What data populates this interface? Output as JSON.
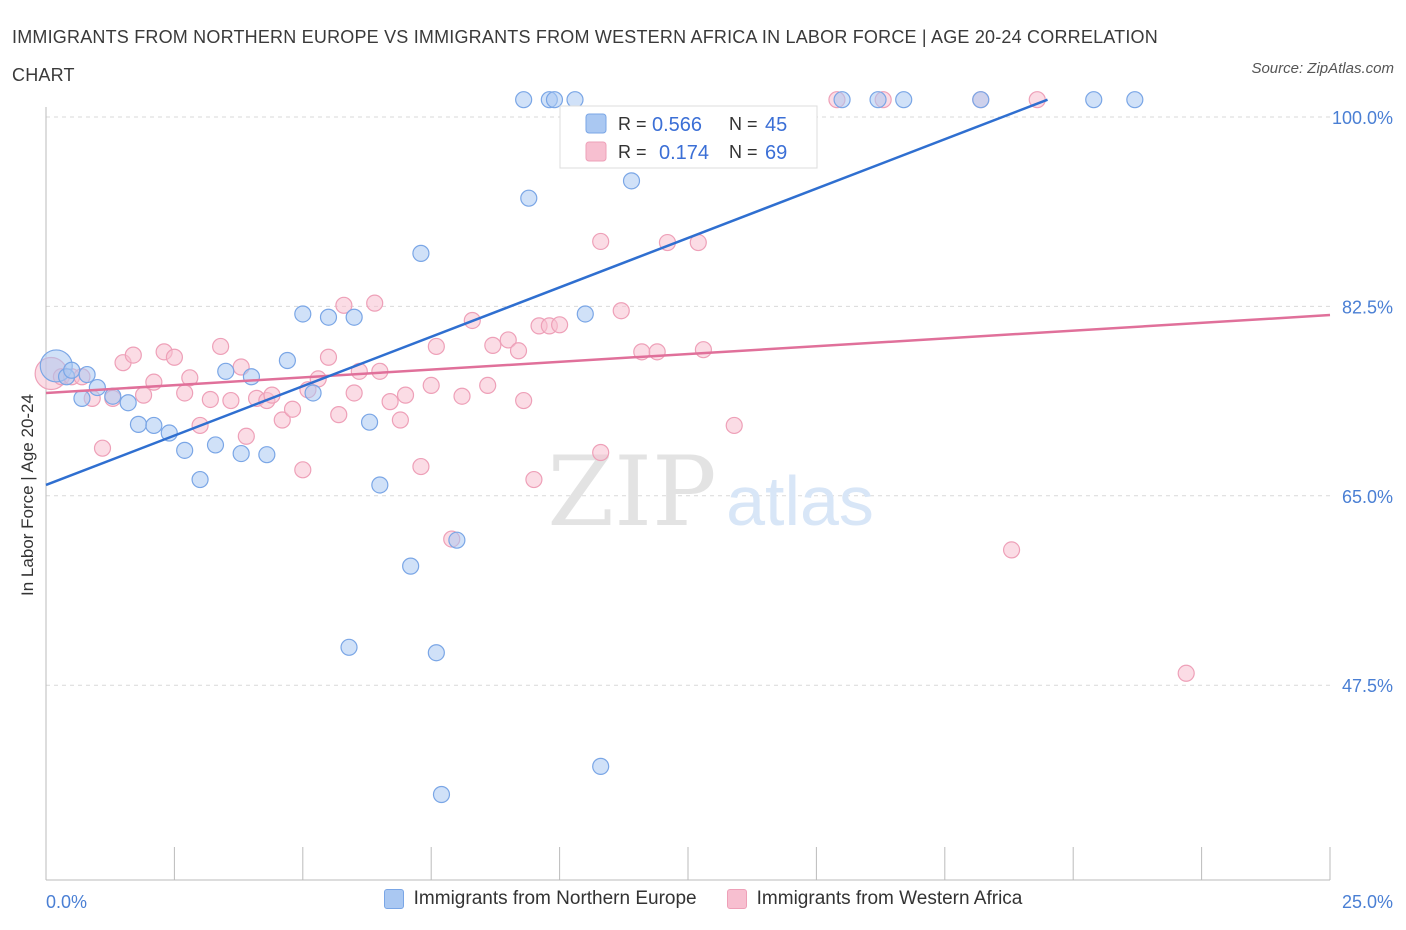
{
  "header": {
    "title": "IMMIGRANTS FROM NORTHERN EUROPE VS IMMIGRANTS FROM WESTERN AFRICA IN LABOR FORCE | AGE 20-24 CORRELATION CHART",
    "source": "Source: ZipAtlas.com"
  },
  "watermark": {
    "zip": "ZIP",
    "atlas": "atlas"
  },
  "stats": {
    "r_label": "R =",
    "n_label": "N =",
    "blue": {
      "r": "0.566",
      "n": "45"
    },
    "pink": {
      "r": "0.174",
      "n": "69"
    }
  },
  "legend": {
    "blue": "Immigrants from Northern Europe",
    "pink": "Immigrants from Western Africa"
  },
  "colors": {
    "blue_fill": "#aac8f2",
    "blue_stroke": "#7aa6e6",
    "blue_line": "#2f6fd0",
    "pink_fill": "#f7bfd0",
    "pink_stroke": "#eea0b8",
    "pink_line": "#e0709a",
    "grid": "#d9d9d9",
    "tick_text": "#4a7fd4"
  },
  "chart_data": {
    "type": "scatter",
    "title": "IMMIGRANTS FROM NORTHERN EUROPE VS IMMIGRANTS FROM WESTERN AFRICA IN LABOR FORCE | AGE 20-24 CORRELATION CHART",
    "xlabel": "",
    "ylabel": "In Labor Force | Age 20-24",
    "xlim": [
      0,
      25
    ],
    "ylim": [
      29.5,
      100
    ],
    "x_tick_labels": [
      "0.0%",
      "25.0%"
    ],
    "y_ticks": [
      47.5,
      65.0,
      82.5,
      100.0
    ],
    "y_tick_labels": [
      "47.5%",
      "65.0%",
      "82.5%",
      "100.0%"
    ],
    "grid": true,
    "legend_position": "bottom",
    "series": [
      {
        "name": "Immigrants from Northern Europe",
        "color": "#7aa6e6",
        "r": 0.566,
        "n": 45,
        "trend": {
          "x": [
            0,
            19.5
          ],
          "y": [
            66.0,
            101.6
          ]
        },
        "points": [
          [
            0.2,
            77.0
          ],
          [
            0.4,
            76.0
          ],
          [
            0.5,
            76.6
          ],
          [
            0.7,
            74.0
          ],
          [
            1.0,
            75.0
          ],
          [
            1.3,
            74.2
          ],
          [
            1.6,
            73.6
          ],
          [
            1.8,
            71.6
          ],
          [
            2.1,
            71.5
          ],
          [
            2.4,
            70.8
          ],
          [
            2.7,
            69.2
          ],
          [
            3.0,
            66.5
          ],
          [
            3.3,
            69.7
          ],
          [
            3.5,
            76.5
          ],
          [
            3.8,
            68.9
          ],
          [
            4.0,
            76.0
          ],
          [
            4.3,
            68.8
          ],
          [
            4.7,
            77.5
          ],
          [
            5.0,
            81.8
          ],
          [
            5.2,
            74.5
          ],
          [
            5.5,
            81.5
          ],
          [
            6.0,
            81.5
          ],
          [
            6.3,
            71.8
          ],
          [
            6.5,
            66.0
          ],
          [
            7.1,
            58.5
          ],
          [
            7.3,
            87.4
          ],
          [
            8.0,
            60.9
          ],
          [
            5.9,
            51.0
          ],
          [
            7.6,
            50.5
          ],
          [
            7.7,
            37.4
          ],
          [
            9.4,
            92.5
          ],
          [
            9.3,
            101.6
          ],
          [
            9.8,
            101.6
          ],
          [
            10.3,
            101.6
          ],
          [
            10.8,
            40.0
          ],
          [
            10.5,
            81.8
          ],
          [
            11.4,
            94.1
          ],
          [
            15.5,
            101.6
          ],
          [
            16.2,
            101.6
          ],
          [
            16.7,
            101.6
          ],
          [
            18.2,
            101.6
          ],
          [
            20.4,
            101.6
          ],
          [
            21.2,
            101.6
          ],
          [
            9.9,
            101.6
          ],
          [
            0.8,
            76.2
          ]
        ]
      },
      {
        "name": "Immigrants from Western Africa",
        "color": "#eea0b8",
        "r": 0.174,
        "n": 69,
        "trend": {
          "x": [
            0,
            25
          ],
          "y": [
            74.5,
            81.7
          ]
        },
        "points": [
          [
            0.1,
            76.3
          ],
          [
            0.3,
            76.0
          ],
          [
            0.5,
            76.0
          ],
          [
            0.7,
            76.0
          ],
          [
            0.9,
            74.0
          ],
          [
            1.1,
            69.4
          ],
          [
            1.3,
            74.0
          ],
          [
            1.5,
            77.3
          ],
          [
            1.7,
            78.0
          ],
          [
            1.9,
            74.3
          ],
          [
            2.1,
            75.5
          ],
          [
            2.3,
            78.3
          ],
          [
            2.5,
            77.8
          ],
          [
            2.7,
            74.5
          ],
          [
            2.8,
            75.9
          ],
          [
            3.0,
            71.5
          ],
          [
            3.2,
            73.9
          ],
          [
            3.4,
            78.8
          ],
          [
            3.6,
            73.8
          ],
          [
            3.8,
            76.9
          ],
          [
            3.9,
            70.5
          ],
          [
            4.1,
            74.0
          ],
          [
            4.3,
            73.8
          ],
          [
            4.4,
            74.3
          ],
          [
            4.6,
            72.0
          ],
          [
            4.8,
            73.0
          ],
          [
            5.0,
            67.4
          ],
          [
            5.1,
            74.8
          ],
          [
            5.3,
            75.8
          ],
          [
            5.5,
            77.8
          ],
          [
            5.7,
            72.5
          ],
          [
            5.8,
            82.6
          ],
          [
            6.0,
            74.5
          ],
          [
            6.1,
            76.5
          ],
          [
            6.4,
            82.8
          ],
          [
            6.5,
            76.5
          ],
          [
            6.7,
            73.7
          ],
          [
            6.9,
            72.0
          ],
          [
            7.0,
            74.3
          ],
          [
            7.3,
            67.7
          ],
          [
            7.5,
            75.2
          ],
          [
            7.6,
            78.8
          ],
          [
            7.9,
            61.0
          ],
          [
            8.1,
            74.2
          ],
          [
            8.3,
            81.2
          ],
          [
            8.6,
            75.2
          ],
          [
            8.7,
            78.9
          ],
          [
            9.0,
            79.4
          ],
          [
            9.2,
            78.4
          ],
          [
            9.3,
            73.8
          ],
          [
            9.6,
            80.7
          ],
          [
            9.8,
            80.7
          ],
          [
            10.0,
            80.8
          ],
          [
            9.5,
            66.5
          ],
          [
            10.8,
            69.0
          ],
          [
            10.8,
            88.5
          ],
          [
            11.2,
            82.1
          ],
          [
            11.6,
            78.3
          ],
          [
            11.9,
            78.3
          ],
          [
            12.1,
            88.4
          ],
          [
            12.7,
            88.4
          ],
          [
            12.8,
            78.5
          ],
          [
            13.4,
            71.5
          ],
          [
            15.4,
            101.6
          ],
          [
            16.3,
            101.6
          ],
          [
            18.2,
            101.6
          ],
          [
            19.3,
            101.6
          ],
          [
            18.8,
            60.0
          ],
          [
            22.2,
            48.6
          ]
        ]
      }
    ]
  }
}
